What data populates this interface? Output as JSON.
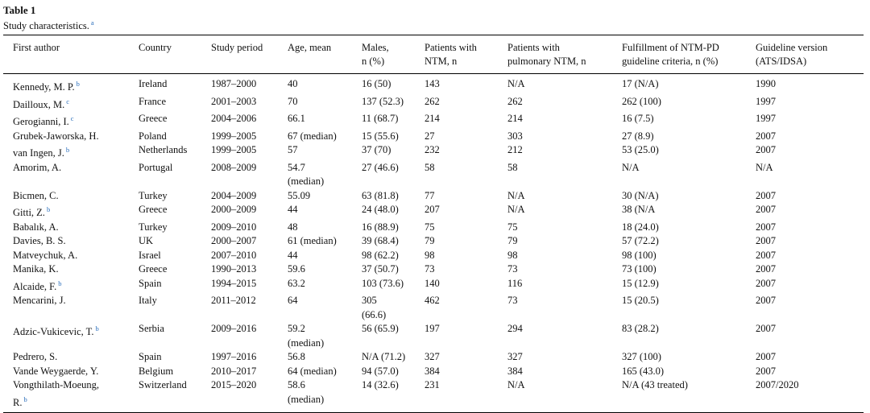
{
  "title": "Table 1",
  "caption": "Study characteristics.",
  "caption_note": "a",
  "table": {
    "header": [
      [
        "First author"
      ],
      [
        "Country"
      ],
      [
        "Study period"
      ],
      [
        "Age, mean"
      ],
      [
        "Males,",
        "n (%)"
      ],
      [
        "Patients with",
        "NTM, n"
      ],
      [
        "Patients with",
        "pulmonary NTM, n"
      ],
      [
        "Fulfillment of NTM-PD",
        "guideline criteria, n (%)"
      ],
      [
        "Guideline version",
        "(ATS/IDSA)"
      ]
    ],
    "rows": [
      {
        "cells": [
          [
            "Kennedy, M. P."
          ],
          [
            "Ireland"
          ],
          [
            "1987–2000"
          ],
          [
            "40"
          ],
          [
            "16 (50)"
          ],
          [
            "143"
          ],
          [
            "N/A"
          ],
          [
            "17 (N/A)"
          ],
          [
            "1990"
          ]
        ],
        "note": "b"
      },
      {
        "cells": [
          [
            "Dailloux, M."
          ],
          [
            "France"
          ],
          [
            "2001–2003"
          ],
          [
            "70"
          ],
          [
            "137 (52.3)"
          ],
          [
            "262"
          ],
          [
            "262"
          ],
          [
            "262 (100)"
          ],
          [
            "1997"
          ]
        ],
        "note": "c"
      },
      {
        "cells": [
          [
            "Gerogianni, I."
          ],
          [
            "Greece"
          ],
          [
            "2004–2006"
          ],
          [
            "66.1"
          ],
          [
            "11 (68.7)"
          ],
          [
            "214"
          ],
          [
            "214"
          ],
          [
            "16 (7.5)"
          ],
          [
            "1997"
          ]
        ],
        "note": "c"
      },
      {
        "cells": [
          [
            "Grubek-Jaworska, H."
          ],
          [
            "Poland"
          ],
          [
            "1999–2005"
          ],
          [
            "67 (median)"
          ],
          [
            "15 (55.6)"
          ],
          [
            "27"
          ],
          [
            "303"
          ],
          [
            "27 (8.9)"
          ],
          [
            "2007"
          ]
        ]
      },
      {
        "cells": [
          [
            "van Ingen, J."
          ],
          [
            "Netherlands"
          ],
          [
            "1999–2005"
          ],
          [
            "57"
          ],
          [
            "37 (70)"
          ],
          [
            "232"
          ],
          [
            "212"
          ],
          [
            "53 (25.0)"
          ],
          [
            "2007"
          ]
        ],
        "note": "b"
      },
      {
        "cells": [
          [
            "Amorim, A."
          ],
          [
            "Portugal"
          ],
          [
            "2008–2009"
          ],
          [
            "54.7",
            "(median)"
          ],
          [
            "27 (46.6)"
          ],
          [
            "58"
          ],
          [
            "58"
          ],
          [
            "N/A"
          ],
          [
            "N/A"
          ]
        ]
      },
      {
        "cells": [
          [
            "Bicmen, C."
          ],
          [
            "Turkey"
          ],
          [
            "2004–2009"
          ],
          [
            "55.09"
          ],
          [
            "63 (81.8)"
          ],
          [
            "77"
          ],
          [
            "N/A"
          ],
          [
            "30 (N/A)"
          ],
          [
            "2007"
          ]
        ]
      },
      {
        "cells": [
          [
            "Gitti, Z."
          ],
          [
            "Greece"
          ],
          [
            "2000–2009"
          ],
          [
            "44"
          ],
          [
            "24 (48.0)"
          ],
          [
            "207"
          ],
          [
            "N/A"
          ],
          [
            "38 (N/A"
          ],
          [
            "2007"
          ]
        ],
        "note": "b"
      },
      {
        "cells": [
          [
            "Babalık, A."
          ],
          [
            "Turkey"
          ],
          [
            "2009–2010"
          ],
          [
            "48"
          ],
          [
            "16 (88.9)"
          ],
          [
            "75"
          ],
          [
            "75"
          ],
          [
            "18 (24.0)"
          ],
          [
            "2007"
          ]
        ]
      },
      {
        "cells": [
          [
            "Davies, B. S."
          ],
          [
            "UK"
          ],
          [
            "2000–2007"
          ],
          [
            "61 (median)"
          ],
          [
            "39 (68.4)"
          ],
          [
            "79"
          ],
          [
            "79"
          ],
          [
            "57 (72.2)"
          ],
          [
            "2007"
          ]
        ]
      },
      {
        "cells": [
          [
            "Matveychuk, A."
          ],
          [
            "Israel"
          ],
          [
            "2007–2010"
          ],
          [
            "44"
          ],
          [
            "98 (62.2)"
          ],
          [
            "98"
          ],
          [
            "98"
          ],
          [
            "98 (100)"
          ],
          [
            "2007"
          ]
        ]
      },
      {
        "cells": [
          [
            "Manika, K."
          ],
          [
            "Greece"
          ],
          [
            "1990–2013"
          ],
          [
            "59.6"
          ],
          [
            "37 (50.7)"
          ],
          [
            "73"
          ],
          [
            "73"
          ],
          [
            "73 (100)"
          ],
          [
            "2007"
          ]
        ]
      },
      {
        "cells": [
          [
            "Alcaide, F."
          ],
          [
            "Spain"
          ],
          [
            "1994–2015"
          ],
          [
            "63.2"
          ],
          [
            "103 (73.6)"
          ],
          [
            "140"
          ],
          [
            "116"
          ],
          [
            "15 (12.9)"
          ],
          [
            "2007"
          ]
        ],
        "note": "b"
      },
      {
        "cells": [
          [
            "Mencarini, J."
          ],
          [
            "Italy"
          ],
          [
            "2011–2012"
          ],
          [
            "64"
          ],
          [
            "305",
            "(66.6)"
          ],
          [
            "462"
          ],
          [
            "73"
          ],
          [
            "15 (20.5)"
          ],
          [
            "2007"
          ]
        ]
      },
      {
        "cells": [
          [
            "Adzic-Vukicevic, T."
          ],
          [
            "Serbia"
          ],
          [
            "2009–2016"
          ],
          [
            "59.2",
            "(median)"
          ],
          [
            "56 (65.9)"
          ],
          [
            "197"
          ],
          [
            "294"
          ],
          [
            "83 (28.2)"
          ],
          [
            "2007"
          ]
        ],
        "note": "b"
      },
      {
        "cells": [
          [
            "Pedrero, S."
          ],
          [
            "Spain"
          ],
          [
            "1997–2016"
          ],
          [
            "56.8"
          ],
          [
            "N/A (71.2)"
          ],
          [
            "327"
          ],
          [
            "327"
          ],
          [
            "327 (100)"
          ],
          [
            "2007"
          ]
        ]
      },
      {
        "cells": [
          [
            "Vande Weygaerde, Y."
          ],
          [
            "Belgium"
          ],
          [
            "2010–2017"
          ],
          [
            "64 (median)"
          ],
          [
            "94 (57.0)"
          ],
          [
            "384"
          ],
          [
            "384"
          ],
          [
            "165 (43.0)"
          ],
          [
            "2007"
          ]
        ]
      },
      {
        "cells": [
          [
            "Vongthilath-Moeung,",
            "R."
          ],
          [
            "Switzerland"
          ],
          [
            "2015–2020"
          ],
          [
            "58.6",
            "(median)"
          ],
          [
            "14 (32.6)"
          ],
          [
            "231"
          ],
          [
            "N/A"
          ],
          [
            "N/A (43 treated)"
          ],
          [
            "2007/2020"
          ]
        ],
        "note": "b"
      }
    ]
  }
}
